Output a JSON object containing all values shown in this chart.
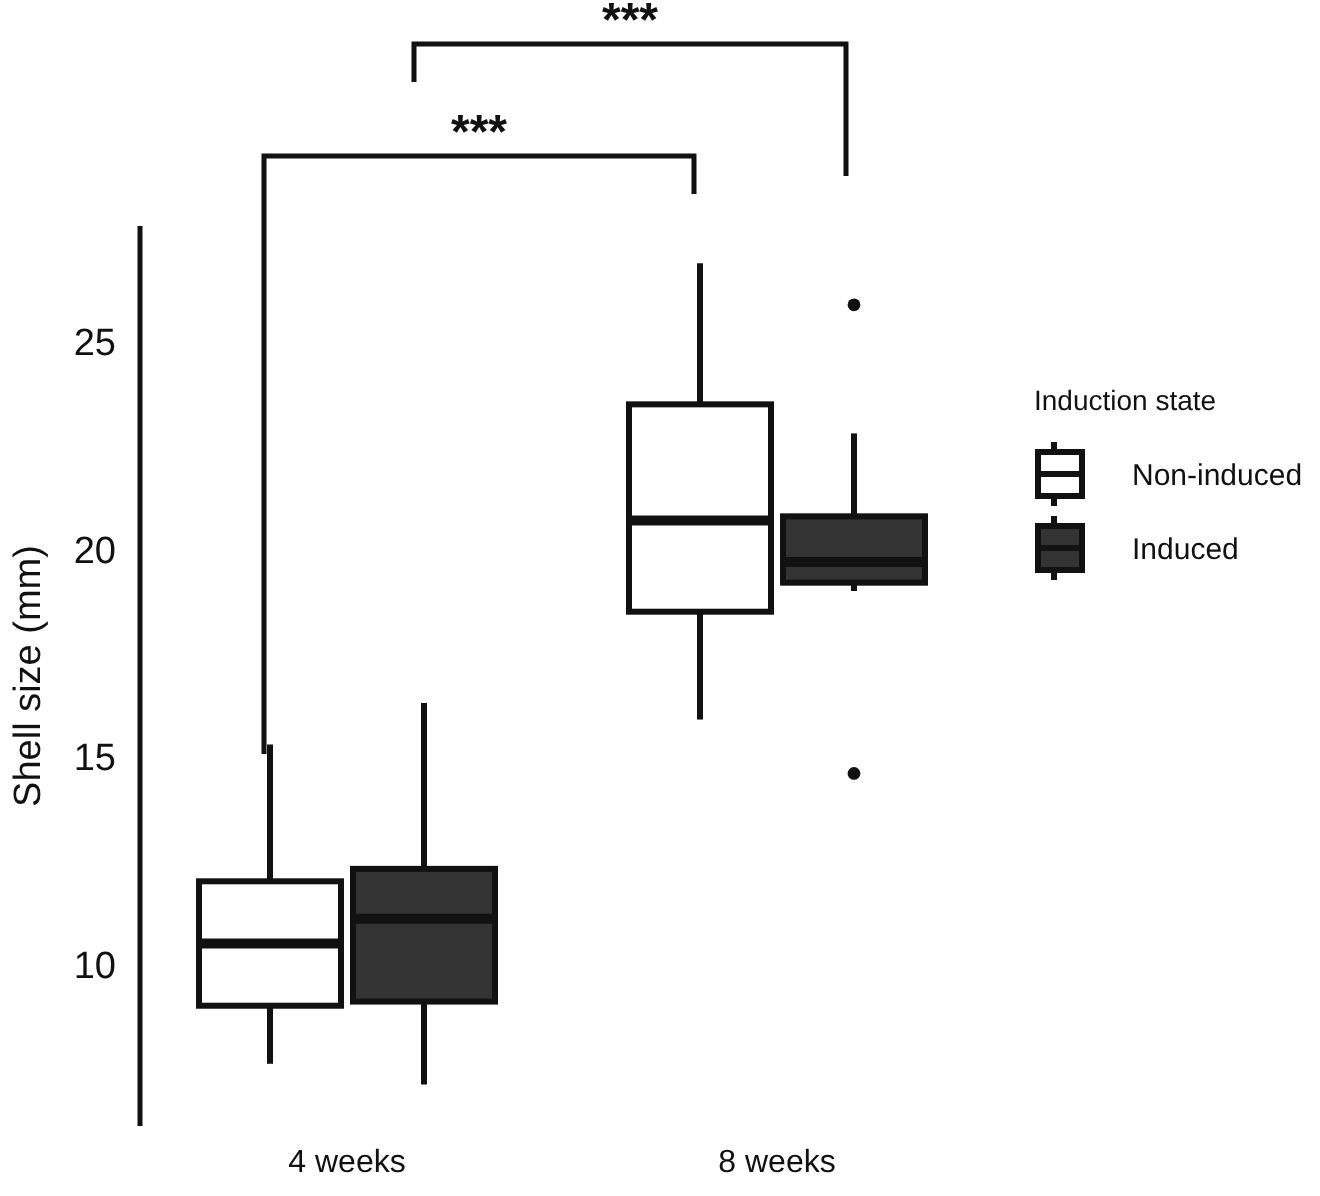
{
  "chart_data": {
    "type": "box",
    "ylabel": "Shell size (mm)",
    "legend_title": "Induction state",
    "categories": [
      "4 weeks",
      "8 weeks"
    ],
    "series": [
      {
        "name": "Non-induced",
        "color": "#ffffff",
        "boxes": [
          {
            "low": 7.6,
            "q1": 9.0,
            "median": 10.5,
            "q3": 12.0,
            "high": 15.3
          },
          {
            "low": 15.9,
            "q1": 18.5,
            "median": 20.7,
            "q3": 23.5,
            "high": 26.9
          }
        ]
      },
      {
        "name": "Induced",
        "color": "#333333",
        "boxes": [
          {
            "low": 7.1,
            "q1": 9.1,
            "median": 11.1,
            "q3": 12.3,
            "high": 16.3
          },
          {
            "low": 19.0,
            "q1": 19.2,
            "median": 19.7,
            "q3": 20.8,
            "high": 22.8,
            "outliers": [
              25.9,
              14.6
            ]
          }
        ]
      }
    ],
    "ylim": [
      6.1,
      27.8
    ],
    "yticks": [
      10,
      15,
      20,
      25
    ],
    "grid": false,
    "legend": "right",
    "annotations": [
      "***",
      "***"
    ]
  }
}
